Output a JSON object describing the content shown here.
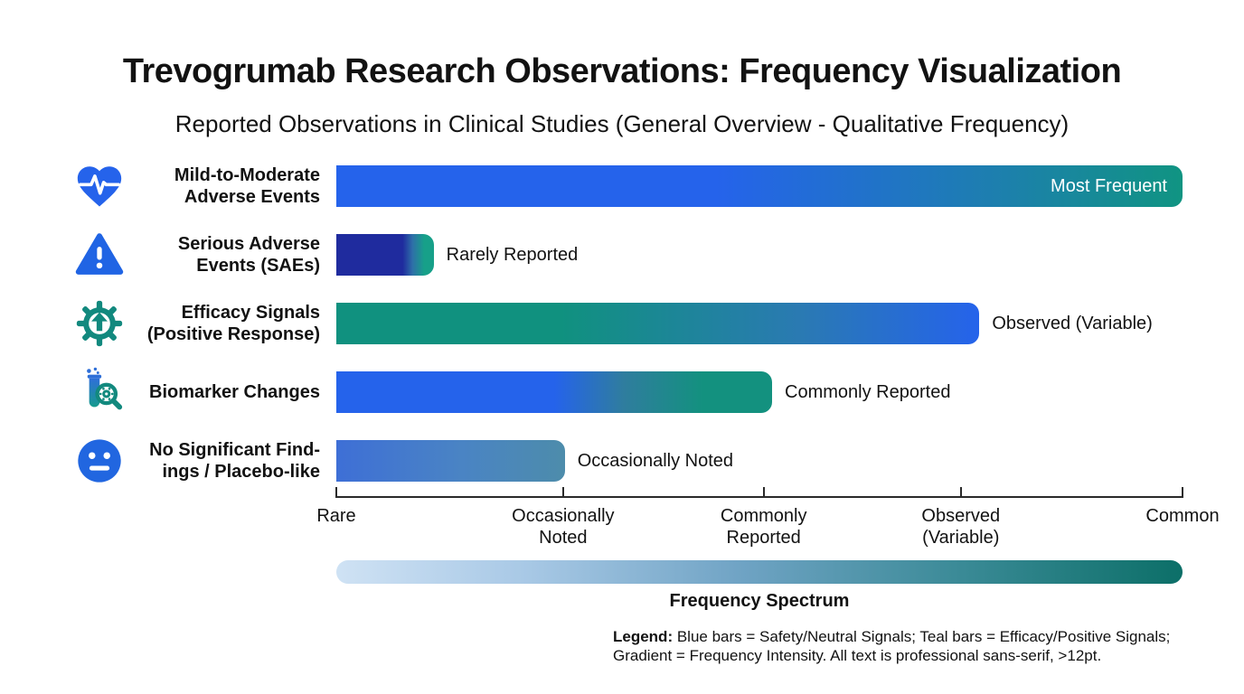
{
  "header": {
    "title": "Trevogrumab Research Observations: Frequency Visualization",
    "subtitle": "Reported Observations in Clinical Studies (General Overview - Qualitative Frequency)"
  },
  "chart_data": {
    "type": "bar",
    "orientation": "horizontal",
    "title": "Trevogrumab Research Observations: Frequency Visualization",
    "subtitle": "Reported Observations in Clinical Studies (General Overview - Qualitative Frequency)",
    "x_axis": {
      "label": "Frequency Spectrum",
      "ticks": [
        "Rare",
        "Occasionally\nNoted",
        "Commonly\nReported",
        "Observed\n(Variable)",
        "Common"
      ],
      "tick_positions_pct": [
        0,
        26.8,
        50.5,
        73.8,
        100
      ],
      "grid": false
    },
    "legend_position": "bottom",
    "rows": [
      {
        "category": "Mild-to-Moderate\nAdverse Events",
        "icon": "heart-pulse-icon",
        "value_label": "Most Frequent",
        "label_inside": true,
        "value_pct": 100,
        "gradient": [
          [
            "#2563eb",
            "0%"
          ],
          [
            "#2563eb",
            "45%"
          ],
          [
            "#1d7fae",
            "78%"
          ],
          [
            "#109482",
            "100%"
          ]
        ]
      },
      {
        "category": "Serious Adverse\nEvents (SAEs)",
        "icon": "warning-triangle-icon",
        "value_label": "Rarely Reported",
        "label_inside": false,
        "value_pct": 11.5,
        "gradient": [
          [
            "#1f2b9e",
            "0%"
          ],
          [
            "#1f2b9e",
            "68%"
          ],
          [
            "#2e6fa8",
            "78%"
          ],
          [
            "#17a089",
            "90%"
          ],
          [
            "#17a089",
            "100%"
          ]
        ]
      },
      {
        "category": "Efficacy Signals\n(Positive Response)",
        "icon": "gear-up-arrow-icon",
        "value_label": "Observed (Variable)",
        "label_inside": false,
        "value_pct": 76,
        "gradient": [
          [
            "#10917f",
            "0%"
          ],
          [
            "#10917f",
            "35%"
          ],
          [
            "#2a7ab2",
            "72%"
          ],
          [
            "#2563eb",
            "100%"
          ]
        ]
      },
      {
        "category": "Biomarker Changes",
        "icon": "test-tube-magnifier-icon",
        "value_label": "Commonly Reported",
        "label_inside": false,
        "value_pct": 51.5,
        "gradient": [
          [
            "#2563eb",
            "0%"
          ],
          [
            "#2563eb",
            "50%"
          ],
          [
            "#2f7d9e",
            "66%"
          ],
          [
            "#13917f",
            "84%"
          ],
          [
            "#13917f",
            "100%"
          ]
        ]
      },
      {
        "category": "No Significant Find-\nings / Placebo-like",
        "icon": "neutral-face-icon",
        "value_label": "Occasionally Noted",
        "label_inside": false,
        "value_pct": 27,
        "gradient": [
          [
            "#3e6fd6",
            "0%"
          ],
          [
            "#4a84c4",
            "55%"
          ],
          [
            "#4d8cab",
            "100%"
          ]
        ]
      }
    ]
  },
  "spectrum": {
    "label": "Frequency Spectrum",
    "gradient": [
      [
        "#cfe2f4",
        "0%"
      ],
      [
        "#a9c9e6",
        "22%"
      ],
      [
        "#6fa3c4",
        "48%"
      ],
      [
        "#3a8a96",
        "74%"
      ],
      [
        "#0c6f68",
        "100%"
      ]
    ]
  },
  "legend": {
    "prefix": "Legend:",
    "line1_rest": " Blue bars = Safety/Neutral Signals; Teal bars = Efficacy/Positive Signals;",
    "line2": "Gradient = Frequency Intensity. All text is professional sans-serif, >12pt."
  },
  "colors": {
    "blue": "#2563eb",
    "teal": "#10917f",
    "navy": "#1f2b9e",
    "text": "#121212"
  }
}
